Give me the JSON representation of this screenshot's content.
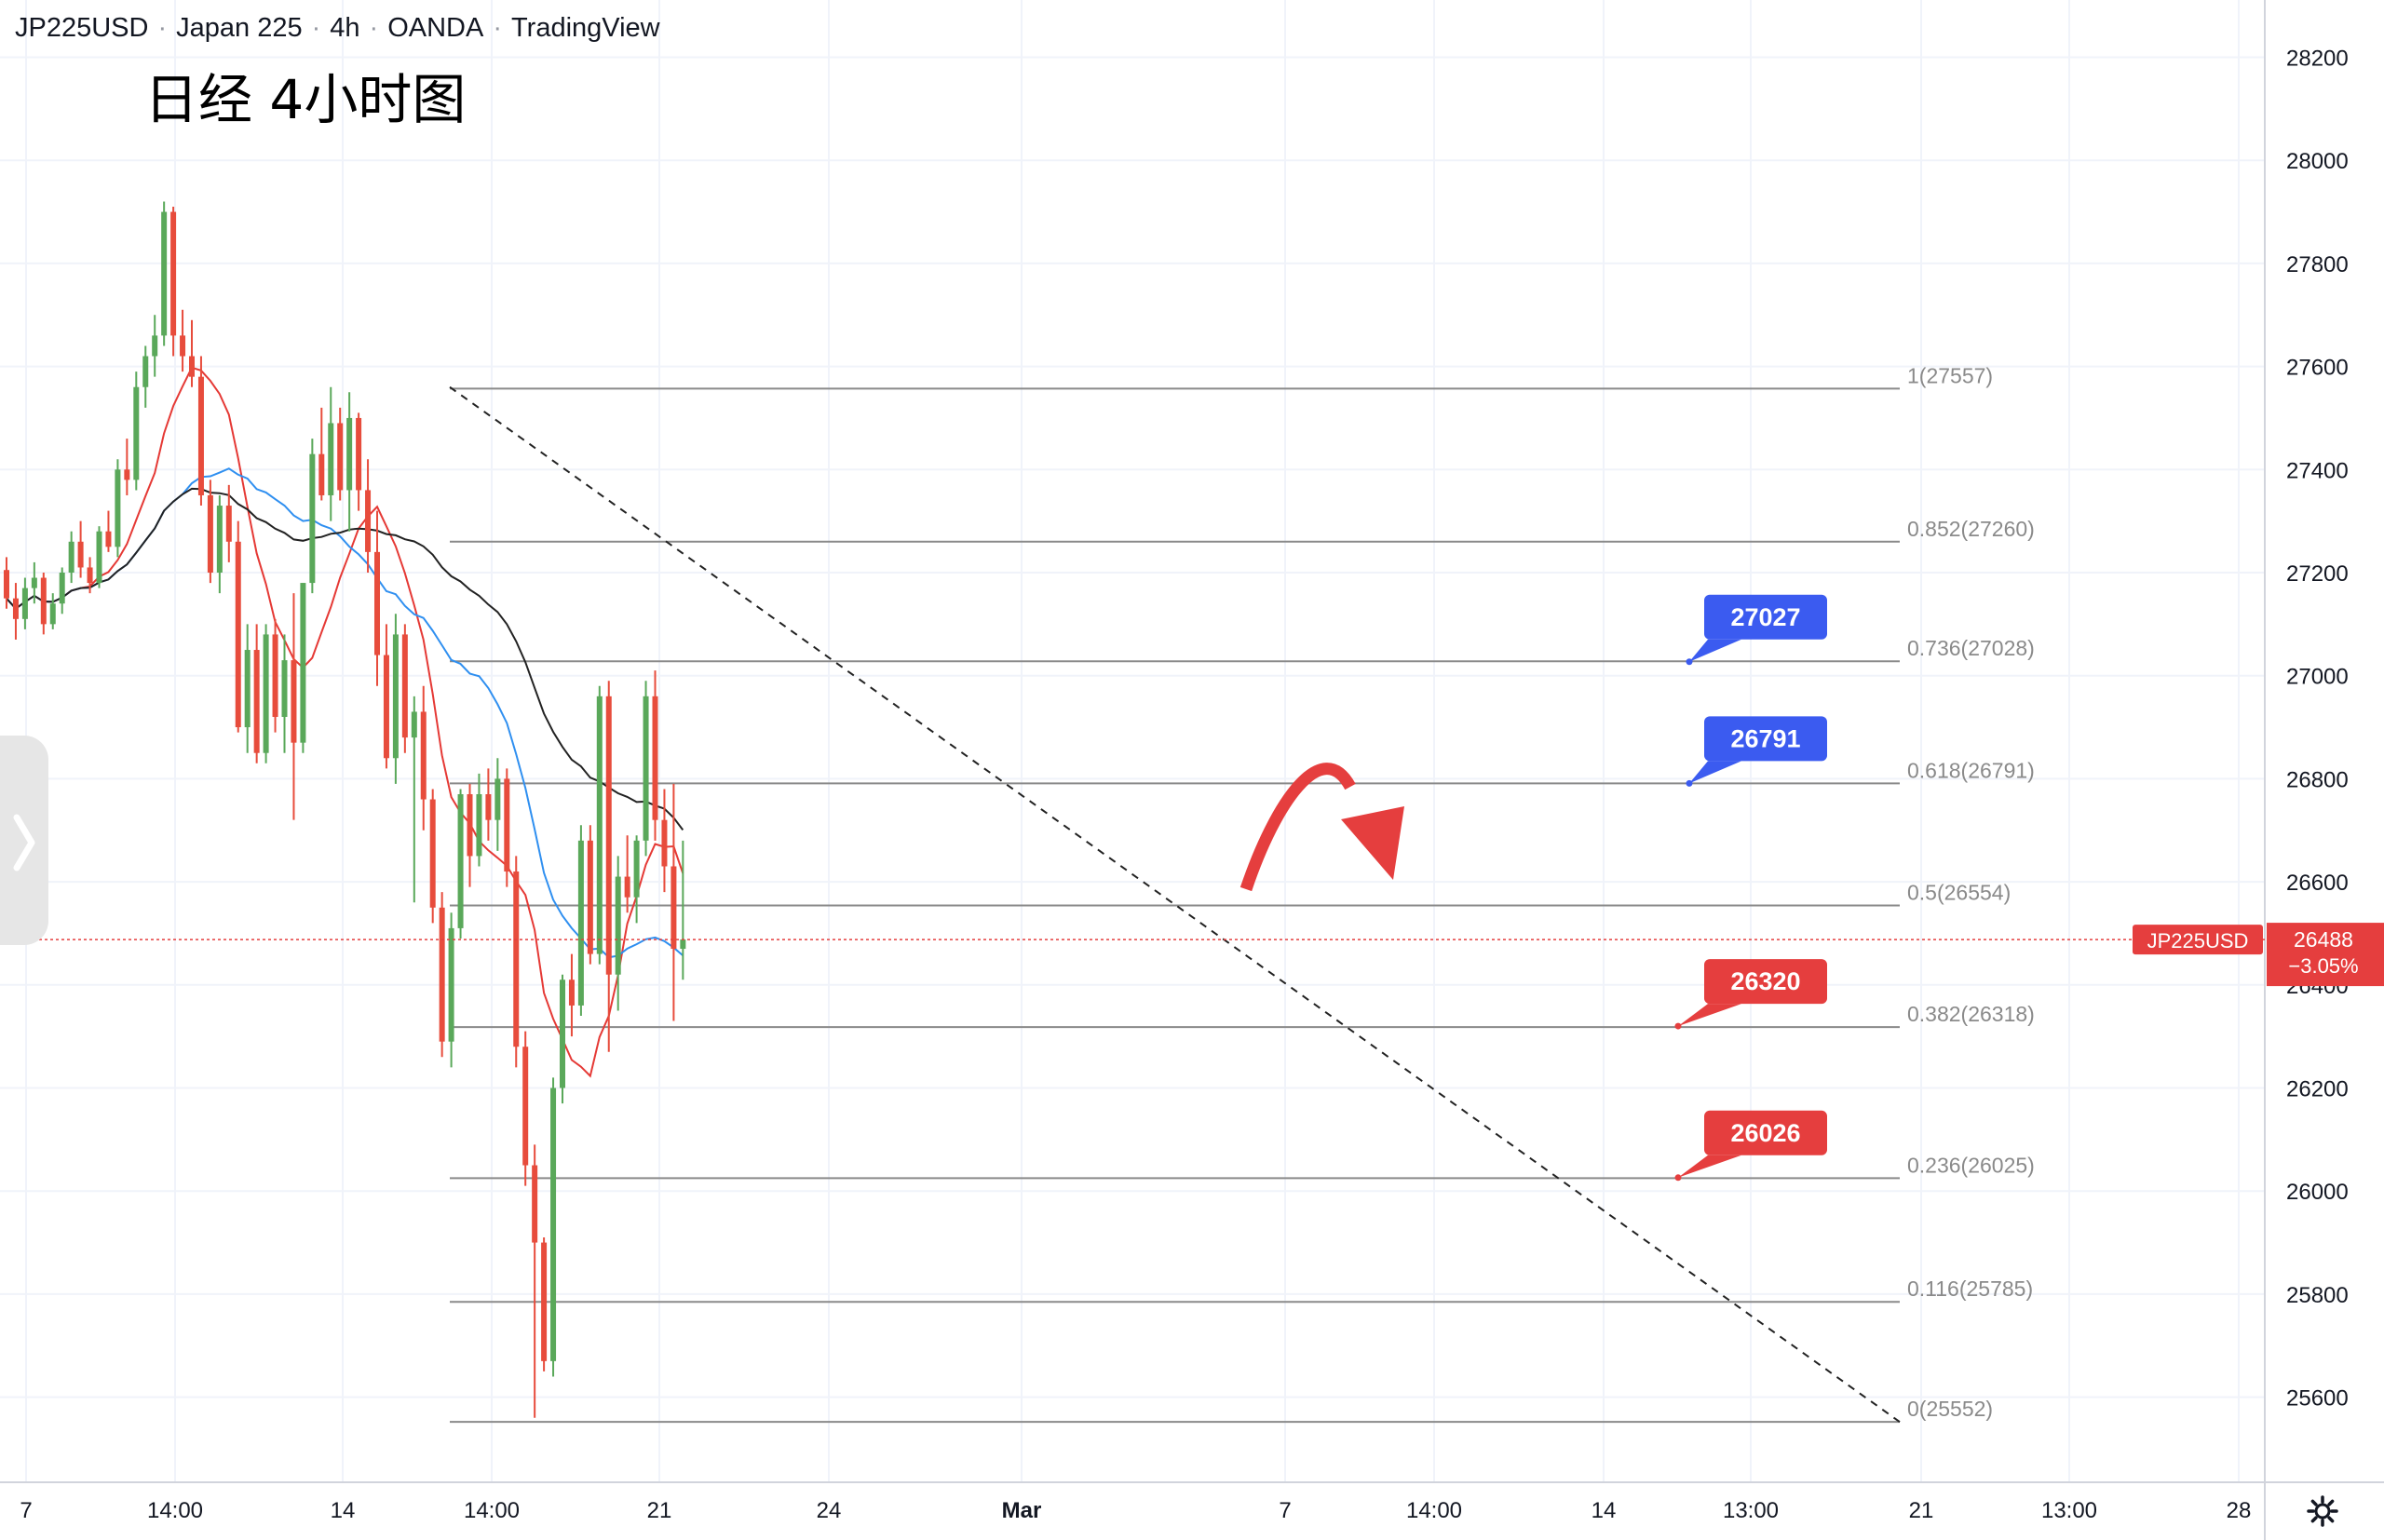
{
  "header": {
    "symbol": "JP225USD",
    "name": "Japan 225",
    "timeframe": "4h",
    "broker": "OANDA",
    "platform": "TradingView",
    "annotation_title": "日经 4小时图"
  },
  "price_axis": {
    "ticks": [
      "28200",
      "28000",
      "27800",
      "27600",
      "27400",
      "27200",
      "27000",
      "26800",
      "26600",
      "26400",
      "26200",
      "26000",
      "25800",
      "25600"
    ]
  },
  "time_axis": {
    "labels": [
      "7",
      "14:00",
      "14",
      "14:00",
      "21",
      "24",
      "Mar",
      "7",
      "14:00",
      "14",
      "13:00",
      "21",
      "13:00",
      "28"
    ]
  },
  "current_price": {
    "symbol_tag": "JP225USD",
    "price": "26488",
    "change": "−3.05%",
    "value": 26488
  },
  "fib_levels": [
    {
      "label": "1(27557)",
      "value": 27557
    },
    {
      "label": "0.852(27260)",
      "value": 27260
    },
    {
      "label": "0.736(27028)",
      "value": 27028
    },
    {
      "label": "0.618(26791)",
      "value": 26791
    },
    {
      "label": "0.5(26554)",
      "value": 26554
    },
    {
      "label": "0.382(26318)",
      "value": 26318
    },
    {
      "label": "0.236(26025)",
      "value": 26025
    },
    {
      "label": "0.116(25785)",
      "value": 25785
    },
    {
      "label": "0(25552)",
      "value": 25552
    }
  ],
  "price_callouts": [
    {
      "text": "27027",
      "value": 27027,
      "kind": "resistance"
    },
    {
      "text": "26791",
      "value": 26791,
      "kind": "resistance"
    },
    {
      "text": "26320",
      "value": 26320,
      "kind": "support"
    },
    {
      "text": "26026",
      "value": 26026,
      "kind": "support"
    }
  ],
  "colors": {
    "up": "#5aa85a",
    "down": "#e74c3c",
    "callout_blue": "#3b5bf0",
    "callout_red": "#e53e3e",
    "ma_fast": "#e53935",
    "ma_mid": "#2f8ff0",
    "ma_slow": "#222222",
    "arrow": "#e53e3e",
    "fib_line": "#8a8a8a"
  },
  "icons": [
    "chevron-right-icon",
    "gear-icon"
  ],
  "chart_data": {
    "type": "candlestick",
    "ylim": [
      25500,
      28300
    ],
    "candles": [
      [
        27205,
        27230,
        27130,
        27150
      ],
      [
        27150,
        27180,
        27070,
        27110
      ],
      [
        27110,
        27190,
        27090,
        27170
      ],
      [
        27170,
        27220,
        27140,
        27190
      ],
      [
        27190,
        27200,
        27080,
        27100
      ],
      [
        27100,
        27160,
        27090,
        27140
      ],
      [
        27140,
        27210,
        27120,
        27200
      ],
      [
        27200,
        27280,
        27180,
        27260
      ],
      [
        27260,
        27300,
        27190,
        27210
      ],
      [
        27210,
        27230,
        27160,
        27180
      ],
      [
        27180,
        27290,
        27170,
        27280
      ],
      [
        27280,
        27320,
        27240,
        27250
      ],
      [
        27250,
        27420,
        27230,
        27400
      ],
      [
        27400,
        27460,
        27350,
        27380
      ],
      [
        27380,
        27590,
        27360,
        27560
      ],
      [
        27560,
        27640,
        27520,
        27620
      ],
      [
        27620,
        27700,
        27580,
        27660
      ],
      [
        27660,
        27920,
        27640,
        27900
      ],
      [
        27900,
        27910,
        27620,
        27660
      ],
      [
        27660,
        27710,
        27590,
        27620
      ],
      [
        27620,
        27690,
        27560,
        27580
      ],
      [
        27580,
        27620,
        27330,
        27350
      ],
      [
        27350,
        27380,
        27180,
        27200
      ],
      [
        27200,
        27350,
        27160,
        27330
      ],
      [
        27330,
        27370,
        27220,
        27260
      ],
      [
        27260,
        27300,
        26890,
        26900
      ],
      [
        26900,
        27100,
        26850,
        27050
      ],
      [
        27050,
        27100,
        26830,
        26850
      ],
      [
        26850,
        27100,
        26830,
        27080
      ],
      [
        27080,
        27110,
        26890,
        26920
      ],
      [
        26920,
        27080,
        26850,
        27030
      ],
      [
        27030,
        27160,
        26720,
        26870
      ],
      [
        26870,
        27180,
        26850,
        27180
      ],
      [
        27180,
        27460,
        27160,
        27430
      ],
      [
        27430,
        27520,
        27340,
        27350
      ],
      [
        27350,
        27560,
        27300,
        27490
      ],
      [
        27490,
        27520,
        27340,
        27360
      ],
      [
        27360,
        27550,
        27280,
        27500
      ],
      [
        27500,
        27510,
        27320,
        27360
      ],
      [
        27360,
        27420,
        27200,
        27240
      ],
      [
        27240,
        27320,
        26980,
        27040
      ],
      [
        27040,
        27100,
        26820,
        26840
      ],
      [
        26840,
        27120,
        26790,
        27080
      ],
      [
        27080,
        27100,
        26850,
        26880
      ],
      [
        26880,
        26960,
        26560,
        26930
      ],
      [
        26930,
        26980,
        26700,
        26760
      ],
      [
        26760,
        26780,
        26520,
        26550
      ],
      [
        26550,
        26580,
        26260,
        26290
      ],
      [
        26290,
        26540,
        26240,
        26510
      ],
      [
        26510,
        26780,
        26490,
        26770
      ],
      [
        26770,
        26790,
        26590,
        26650
      ],
      [
        26650,
        26810,
        26630,
        26770
      ],
      [
        26770,
        26820,
        26680,
        26720
      ],
      [
        26720,
        26840,
        26660,
        26800
      ],
      [
        26800,
        26820,
        26590,
        26620
      ],
      [
        26620,
        26650,
        26240,
        26280
      ],
      [
        26280,
        26310,
        26010,
        26050
      ],
      [
        26050,
        26090,
        25560,
        25900
      ],
      [
        25900,
        25910,
        25650,
        25670
      ],
      [
        25670,
        26220,
        25640,
        26200
      ],
      [
        26200,
        26420,
        26170,
        26410
      ],
      [
        26410,
        26460,
        26300,
        26360
      ],
      [
        26360,
        26710,
        26340,
        26680
      ],
      [
        26680,
        26710,
        26440,
        26460
      ],
      [
        26460,
        26980,
        26440,
        26960
      ],
      [
        26960,
        26990,
        26270,
        26420
      ],
      [
        26420,
        26650,
        26350,
        26610
      ],
      [
        26610,
        26690,
        26540,
        26570
      ],
      [
        26570,
        26690,
        26520,
        26680
      ],
      [
        26680,
        26990,
        26650,
        26960
      ],
      [
        26960,
        27010,
        26680,
        26720
      ],
      [
        26720,
        26780,
        26580,
        26630
      ],
      [
        26630,
        26790,
        26330,
        26470
      ],
      [
        26470,
        26680,
        26410,
        26488
      ]
    ],
    "trendline": {
      "start_value": 27560,
      "end_value": 25552
    },
    "annotations": [
      "1(27557)",
      "0.852(27260)",
      "0.736(27028)",
      "0.618(26791)",
      "0.5(26554)",
      "0.382(26318)",
      "0.236(26025)",
      "0.116(25785)",
      "0(25552)"
    ]
  }
}
